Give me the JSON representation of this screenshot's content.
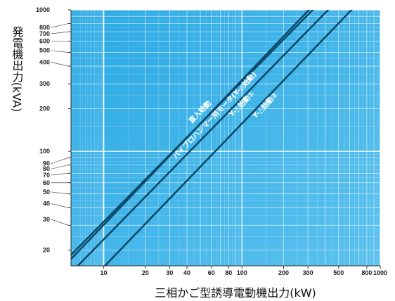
{
  "chart_data": {
    "type": "line",
    "xlabel": "三相かご型誘導電動機出力(kW)",
    "ylabel": "発電機出力(kVA)",
    "x_scale": "log",
    "y_scale": "log",
    "xlim": [
      5.8,
      1000
    ],
    "ylim": [
      15.5,
      1000
    ],
    "x_ticks": [
      10,
      20,
      30,
      40,
      60,
      80,
      100,
      200,
      300,
      500,
      800,
      1000
    ],
    "x_tick_labels": [
      "10",
      "20",
      "30",
      "40",
      "60",
      "80",
      "100",
      "200",
      "300",
      "500",
      "800",
      "1000"
    ],
    "y_ticks": [
      20,
      30,
      40,
      50,
      60,
      70,
      80,
      90,
      100,
      200,
      300,
      400,
      500,
      600,
      700,
      800,
      1000
    ],
    "y_tick_labels": [
      "20",
      "30",
      "40",
      "50",
      "60",
      "70",
      "80",
      "90",
      "100",
      "200",
      "300",
      "400",
      "500",
      "600",
      "700",
      "800",
      "1000"
    ],
    "grid": true,
    "series": [
      {
        "name": "直入始動",
        "x": [
          5.8,
          325
        ],
        "y": [
          18.5,
          1000
        ],
        "color": "#0a4a6a"
      },
      {
        "name": "バイブロハンマー用モータ(Y-△始動)",
        "x": [
          5.8,
          305
        ],
        "y": [
          17.3,
          1000
        ],
        "color": "#0a4a6a"
      },
      {
        "name": "Y-△始動①",
        "x": [
          6.5,
          420
        ],
        "y": [
          15.5,
          1000
        ],
        "color": "#0a4a6a"
      },
      {
        "name": "Y-△始動②",
        "x": [
          10.2,
          620
        ],
        "y": [
          15.5,
          1000
        ],
        "color": "#0a4a6a"
      }
    ],
    "colors": {
      "background": "#27a8e3",
      "grid_minor": "#ffffff",
      "grid_major": "#ffffff",
      "line": "#0a4a6a",
      "label_text": "#ffffff"
    }
  }
}
